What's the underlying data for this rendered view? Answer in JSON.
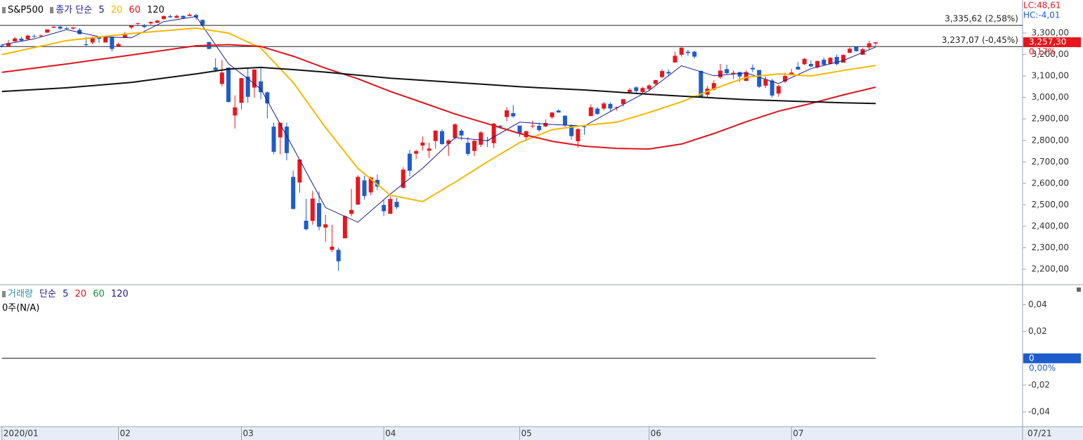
{
  "chart_data": [
    {
      "type": "candlestick",
      "name": "S&P500",
      "ma_label": "종가 단순",
      "lc": "LC:48,61",
      "hc": "HC:-4,01",
      "date_label": "07/21",
      "up_color": "#e8161c",
      "down_color": "#1d5ccc",
      "open": [
        3242,
        3238,
        3261,
        3274,
        3271,
        3286,
        3286,
        3302,
        3325,
        3330,
        3323,
        3321,
        3315,
        3248,
        3256,
        3282,
        3256,
        3282,
        3236,
        3280,
        3326,
        3344,
        3335,
        3345,
        3348,
        3365,
        3379,
        3371,
        3380,
        3380,
        3384,
        3361,
        3258,
        3139,
        3063,
        3139,
        2916,
        2975,
        3097,
        3046,
        3075,
        3024,
        2864,
        2814,
        2864,
        2630,
        2604,
        2426,
        2425,
        2508,
        2394,
        2290,
        2290,
        2344,
        2458,
        2501,
        2614,
        2558,
        2616,
        2499,
        2458,
        2514,
        2579,
        2738,
        2738,
        2776,
        2752,
        2797,
        2843,
        2784,
        2812,
        2845,
        2789,
        2751,
        2780,
        2801,
        2787,
        2868,
        2909,
        2927,
        2869,
        2815,
        2866,
        2868,
        2865,
        2908,
        2939,
        2915,
        2868,
        2796,
        2865,
        2913,
        2948,
        2948,
        2970,
        2954,
        2969,
        3025,
        3047,
        3025,
        3039,
        3063,
        3095,
        3119,
        3163,
        3199,
        3213,
        3213,
        3124,
        3013,
        3036,
        3094,
        3132,
        3110,
        3118,
        3077,
        3138,
        3128,
        3055,
        3079,
        3018,
        3074,
        3105,
        3143,
        3155,
        3156,
        3141,
        3176,
        3157,
        3189,
        3162,
        3208,
        3236,
        3199,
        3233,
        3252
      ],
      "high": [
        3248,
        3268,
        3282,
        3283,
        3294,
        3294,
        3294,
        3317,
        3330,
        3337,
        3330,
        3329,
        3323,
        3282,
        3285,
        3285,
        3287,
        3283,
        3255,
        3306,
        3337,
        3348,
        3342,
        3353,
        3362,
        3382,
        3385,
        3385,
        3382,
        3393,
        3390,
        3364,
        3260,
        3182,
        3175,
        3140,
        3010,
        3091,
        3137,
        3131,
        3137,
        3028,
        2883,
        2884,
        2883,
        2660,
        2711,
        2528,
        2565,
        2562,
        2454,
        2407,
        2301,
        2450,
        2574,
        2638,
        2636,
        2632,
        2641,
        2522,
        2540,
        2533,
        2676,
        2756,
        2757,
        2818,
        2790,
        2846,
        2852,
        2806,
        2879,
        2852,
        2815,
        2802,
        2844,
        2816,
        2882,
        2873,
        2955,
        2965,
        2869,
        2844,
        2892,
        2883,
        2898,
        2932,
        2945,
        2916,
        2875,
        2856,
        2870,
        2968,
        2956,
        2980,
        2978,
        2957,
        2992,
        3044,
        3052,
        3050,
        3062,
        3082,
        3131,
        3131,
        3212,
        3233,
        3222,
        3218,
        3124,
        3054,
        3080,
        3156,
        3153,
        3126,
        3120,
        3127,
        3154,
        3128,
        3098,
        3087,
        3059,
        3116,
        3133,
        3165,
        3183,
        3173,
        3171,
        3186,
        3187,
        3201,
        3202,
        3233,
        3238,
        3230,
        3264,
        3259
      ],
      "low": [
        3232,
        3236,
        3260,
        3262,
        3270,
        3278,
        3280,
        3302,
        3323,
        3315,
        3316,
        3316,
        3294,
        3236,
        3248,
        3254,
        3257,
        3215,
        3235,
        3280,
        3317,
        3332,
        3324,
        3339,
        3346,
        3363,
        3370,
        3370,
        3366,
        3379,
        3361,
        3338,
        3225,
        3118,
        3051,
        2977,
        2855,
        2945,
        2976,
        2999,
        2992,
        2902,
        2735,
        2735,
        2707,
        2478,
        2556,
        2381,
        2407,
        2381,
        2327,
        2280,
        2192,
        2345,
        2446,
        2500,
        2525,
        2545,
        2569,
        2447,
        2459,
        2480,
        2576,
        2633,
        2713,
        2753,
        2718,
        2761,
        2778,
        2728,
        2803,
        2800,
        2727,
        2727,
        2769,
        2769,
        2764,
        2854,
        2889,
        2905,
        2817,
        2798,
        2856,
        2839,
        2862,
        2901,
        2930,
        2863,
        2803,
        2766,
        2826,
        2914,
        2920,
        2940,
        2933,
        2938,
        2957,
        3022,
        3022,
        3014,
        3031,
        3058,
        3090,
        3098,
        3163,
        3190,
        3194,
        3181,
        3000,
        2997,
        3032,
        3087,
        3107,
        3086,
        3072,
        3077,
        3117,
        3044,
        3044,
        2999,
        3003,
        3066,
        3102,
        3129,
        3151,
        3141,
        3135,
        3150,
        3154,
        3150,
        3162,
        3206,
        3212,
        3198,
        3224,
        3241
      ],
      "close": [
        3237,
        3253,
        3275,
        3265,
        3288,
        3283,
        3289,
        3317,
        3330,
        3321,
        3322,
        3326,
        3295,
        3244,
        3276,
        3273,
        3284,
        3226,
        3249,
        3298,
        3335,
        3346,
        3328,
        3352,
        3358,
        3379,
        3374,
        3380,
        3370,
        3386,
        3373,
        3338,
        3226,
        3128,
        3116,
        2979,
        2954,
        3090,
        3003,
        3130,
        3024,
        2972,
        2747,
        2882,
        2741,
        2481,
        2711,
        2386,
        2529,
        2398,
        2409,
        2305,
        2237,
        2447,
        2476,
        2630,
        2541,
        2627,
        2585,
        2470,
        2527,
        2489,
        2664,
        2659,
        2750,
        2790,
        2762,
        2846,
        2783,
        2800,
        2875,
        2823,
        2737,
        2798,
        2837,
        2798,
        2878,
        2863,
        2940,
        2912,
        2831,
        2843,
        2868,
        2848,
        2881,
        2930,
        2930,
        2870,
        2820,
        2853,
        2864,
        2954,
        2923,
        2972,
        2949,
        2955,
        2992,
        3036,
        3030,
        3044,
        3056,
        3081,
        3123,
        3112,
        3194,
        3232,
        3207,
        3190,
        3002,
        3041,
        3067,
        3125,
        3113,
        3115,
        3098,
        3118,
        3131,
        3050,
        3084,
        3009,
        3053,
        3100,
        3116,
        3130,
        3180,
        3145,
        3170,
        3152,
        3185,
        3155,
        3198,
        3227,
        3216,
        3225,
        3252,
        3257
      ],
      "ma_series": [
        {
          "name": "5",
          "color": "#1a1a8c",
          "x": [
            0,
            5,
            10,
            15,
            20,
            25,
            30,
            35,
            40,
            45,
            50,
            55,
            60,
            65,
            70,
            75,
            80,
            85,
            90,
            95,
            100,
            105,
            110,
            115,
            120,
            125,
            130,
            135
          ],
          "values": [
            3245,
            3273,
            3316,
            3283,
            3278,
            3353,
            3377,
            3157,
            3040,
            2765,
            2487,
            2419,
            2550,
            2670,
            2813,
            2799,
            2885,
            2874,
            2867,
            2951,
            3032,
            3148,
            3101,
            3114,
            3065,
            3134,
            3172,
            3235
          ]
        },
        {
          "name": "20",
          "color": "#f5b800",
          "x": [
            0,
            10,
            20,
            30,
            35,
            40,
            45,
            50,
            55,
            60,
            65,
            70,
            75,
            80,
            85,
            90,
            95,
            100,
            105,
            110,
            115,
            120,
            125,
            130,
            135
          ],
          "values": [
            3200,
            3265,
            3298,
            3323,
            3300,
            3230,
            3070,
            2860,
            2670,
            2545,
            2515,
            2605,
            2700,
            2790,
            2850,
            2870,
            2885,
            2930,
            2980,
            3040,
            3094,
            3110,
            3100,
            3126,
            3149
          ]
        },
        {
          "name": "60",
          "color": "#e0141c",
          "x": [
            0,
            10,
            20,
            30,
            35,
            40,
            45,
            50,
            55,
            60,
            65,
            70,
            75,
            80,
            85,
            90,
            95,
            100,
            105,
            110,
            115,
            120,
            125,
            130,
            135
          ],
          "values": [
            3117,
            3156,
            3198,
            3241,
            3246,
            3238,
            3192,
            3136,
            3087,
            3028,
            2976,
            2923,
            2878,
            2832,
            2796,
            2773,
            2763,
            2760,
            2783,
            2832,
            2887,
            2936,
            2972,
            3012,
            3048
          ]
        },
        {
          "name": "120",
          "color": "#111111",
          "x": [
            0,
            10,
            20,
            30,
            35,
            40,
            45,
            50,
            55,
            60,
            65,
            70,
            75,
            80,
            85,
            90,
            95,
            100,
            105,
            110,
            115,
            120,
            125,
            130,
            135
          ],
          "values": [
            3028,
            3045,
            3070,
            3110,
            3132,
            3140,
            3130,
            3118,
            3104,
            3090,
            3080,
            3070,
            3060,
            3050,
            3042,
            3035,
            3025,
            3015,
            3006,
            2998,
            2990,
            2985,
            2980,
            2975,
            2972
          ]
        }
      ],
      "reference_lines": [
        {
          "value": 3335.62,
          "label": "3,335,62 (2,58%)"
        },
        {
          "value": 3237.07,
          "label": "3,237,07 (-0,45%)"
        }
      ],
      "last_price": {
        "value": 3257.3,
        "label": "3,257,30"
      },
      "last_change": "0,17%",
      "ylim": [
        2128,
        3454
      ],
      "yticks": [
        {
          "value": 2200,
          "label": "2,200,00"
        },
        {
          "value": 2300,
          "label": "2,300,00"
        },
        {
          "value": 2400,
          "label": "2,400,00"
        },
        {
          "value": 2500,
          "label": "2,500,00"
        },
        {
          "value": 2600,
          "label": "2,600,00"
        },
        {
          "value": 2700,
          "label": "2,700,00"
        },
        {
          "value": 2800,
          "label": "2,800,00"
        },
        {
          "value": 2900,
          "label": "2,900,00"
        },
        {
          "value": 3000,
          "label": "3,000,00"
        },
        {
          "value": 3100,
          "label": "3,100,00"
        },
        {
          "value": 3200,
          "label": "3,200,00"
        },
        {
          "value": 3300,
          "label": "3,300,00"
        }
      ],
      "xlim": [
        -0.3,
        157.7
      ],
      "xticks": [
        {
          "value": 0,
          "label": "2020/01"
        },
        {
          "value": 18,
          "label": "02"
        },
        {
          "value": 37,
          "label": "03"
        },
        {
          "value": 59,
          "label": "04"
        },
        {
          "value": 80,
          "label": "05"
        },
        {
          "value": 100,
          "label": "06"
        },
        {
          "value": 122,
          "label": "07"
        }
      ]
    },
    {
      "type": "volume",
      "title": "거래량",
      "ma_label": "단순",
      "unit_label": "0주(N/A)",
      "ma_series": [
        {
          "name": "5",
          "color": "#1a1a8c"
        },
        {
          "name": "20",
          "color": "#e0141c"
        },
        {
          "name": "60",
          "color": "#1a8c3a"
        },
        {
          "name": "120",
          "color": "#1a1a8c"
        }
      ],
      "current": {
        "value": 0,
        "label": "0"
      },
      "current_change": "0,00%",
      "ylim": [
        -0.051,
        0.055
      ],
      "yticks": [
        {
          "value": 0.04,
          "label": "0,04"
        },
        {
          "value": 0.02,
          "label": "0,02"
        },
        {
          "value": -0.02,
          "label": "-0,02"
        },
        {
          "value": -0.04,
          "label": "-0,04"
        }
      ]
    }
  ]
}
